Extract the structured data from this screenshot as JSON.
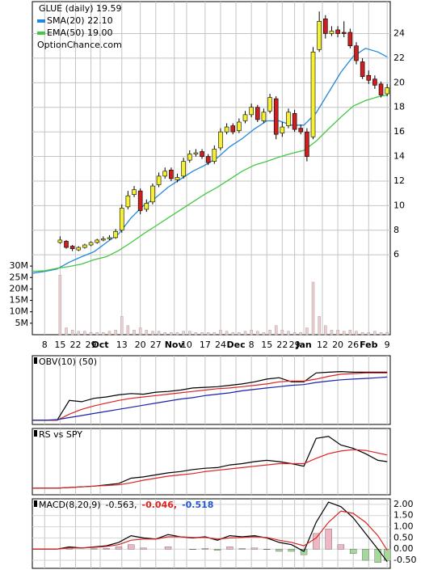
{
  "chart_data": [
    {
      "type": "candlestick",
      "title": "GLUE (daily) 19.59",
      "annotation": "OptionChance.com",
      "x": [
        9,
        11,
        13,
        15,
        17,
        19,
        21,
        23,
        25,
        27,
        29,
        31,
        33,
        35,
        37,
        39,
        41,
        43,
        45,
        47,
        49,
        51,
        53,
        55,
        57,
        59,
        61,
        63,
        65,
        67,
        69,
        71,
        73,
        75,
        77,
        79,
        81,
        83,
        85,
        87,
        89,
        91,
        93,
        95,
        97,
        99,
        101,
        103,
        105,
        107,
        109,
        111,
        113,
        115
      ],
      "open": [
        7.0,
        7.1,
        6.7,
        6.4,
        6.6,
        6.8,
        7.0,
        7.2,
        7.3,
        7.4,
        8.0,
        9.9,
        10.9,
        11.2,
        9.7,
        10.3,
        11.7,
        12.4,
        12.9,
        12.1,
        12.4,
        13.7,
        14.2,
        14.4,
        14.0,
        13.6,
        14.7,
        16.0,
        16.5,
        16.1,
        16.9,
        17.4,
        18.0,
        16.9,
        17.7,
        18.7,
        15.9,
        16.5,
        17.5,
        16.3,
        16.0,
        15.6,
        22.7,
        25.2,
        24.0,
        24.3,
        24.1,
        24.1,
        23.0,
        21.7,
        20.6,
        20.3,
        19.9,
        19.1
      ],
      "high": [
        7.5,
        7.2,
        6.8,
        6.7,
        6.9,
        7.1,
        7.3,
        7.5,
        7.6,
        8.1,
        10.1,
        11.2,
        11.6,
        11.4,
        10.5,
        11.8,
        12.7,
        13.1,
        13.1,
        12.6,
        13.9,
        14.5,
        14.6,
        14.6,
        14.2,
        14.9,
        16.3,
        16.7,
        16.7,
        17.1,
        17.7,
        18.3,
        18.2,
        17.9,
        19.1,
        18.9,
        16.8,
        17.9,
        17.8,
        16.6,
        16.3,
        22.9,
        25.8,
        25.5,
        24.6,
        24.6,
        25.0,
        24.4,
        23.3,
        22.0,
        21.0,
        20.6,
        20.1,
        19.9
      ],
      "low": [
        6.9,
        6.5,
        6.3,
        6.3,
        6.5,
        6.7,
        6.9,
        7.1,
        7.2,
        7.3,
        7.8,
        9.7,
        10.7,
        9.3,
        9.5,
        10.1,
        11.5,
        12.2,
        12.0,
        11.9,
        12.2,
        13.5,
        14.0,
        13.8,
        13.3,
        13.4,
        14.5,
        15.8,
        15.8,
        15.9,
        16.7,
        17.2,
        16.8,
        16.7,
        17.5,
        15.4,
        15.6,
        16.3,
        16.0,
        15.8,
        13.6,
        15.4,
        22.5,
        23.6,
        23.8,
        23.7,
        23.7,
        22.8,
        21.5,
        20.3,
        19.9,
        19.5,
        18.8,
        18.9
      ],
      "close": [
        7.2,
        6.6,
        6.5,
        6.6,
        6.8,
        7.0,
        7.2,
        7.3,
        7.4,
        7.9,
        9.8,
        10.8,
        11.3,
        9.6,
        10.2,
        11.6,
        12.4,
        12.8,
        12.2,
        12.3,
        13.6,
        14.2,
        14.3,
        14.0,
        13.5,
        14.6,
        16.0,
        16.4,
        16.0,
        16.8,
        17.4,
        18.0,
        17.0,
        17.6,
        18.8,
        15.8,
        16.4,
        17.6,
        16.2,
        16.0,
        14.0,
        22.5,
        25.0,
        24.0,
        24.2,
        24.0,
        24.0,
        23.0,
        21.8,
        20.5,
        20.2,
        19.8,
        19.0,
        19.59
      ],
      "up_color": "#f5f032",
      "down_color": "#cc1f1f",
      "volume": {
        "axis": "y2",
        "color": "#e9cfcf",
        "values": [
          26,
          3,
          2,
          1.5,
          1.5,
          1,
          1,
          1,
          1.5,
          2,
          8,
          4,
          2,
          3,
          2,
          1.5,
          1.5,
          1,
          1,
          1,
          1.5,
          1.5,
          1,
          1,
          1,
          1,
          2,
          1.5,
          1,
          1,
          1.5,
          2,
          1.5,
          1,
          2,
          4,
          2,
          1.5,
          1,
          1,
          3,
          23,
          8,
          4,
          2,
          2,
          1.5,
          2,
          1.5,
          1,
          1,
          1.5,
          1,
          1
        ]
      },
      "series": [
        {
          "name": "SMA(20) 22.10",
          "color": "#2288dd",
          "x": [
            0,
            4,
            8,
            12,
            16,
            20,
            24,
            28,
            32,
            36,
            40,
            44,
            48,
            52,
            56,
            60,
            64,
            68,
            72,
            76,
            80,
            84,
            88,
            92,
            96,
            100,
            104,
            108,
            112,
            115
          ],
          "values": [
            4.5,
            4.65,
            4.85,
            5.4,
            5.85,
            6.25,
            7.0,
            7.7,
            9.0,
            10.0,
            10.65,
            11.5,
            12.15,
            12.8,
            13.3,
            13.9,
            14.8,
            15.45,
            16.25,
            16.9,
            16.9,
            16.55,
            16.55,
            17.55,
            19.2,
            20.85,
            22.15,
            22.8,
            22.5,
            22.1
          ]
        },
        {
          "name": "EMA(50) 19.00",
          "color": "#44c844",
          "x": [
            0,
            4,
            8,
            12,
            16,
            20,
            24,
            28,
            32,
            36,
            40,
            44,
            48,
            52,
            56,
            60,
            64,
            68,
            72,
            76,
            80,
            84,
            88,
            92,
            96,
            100,
            104,
            108,
            112,
            115
          ],
          "values": [
            4.65,
            4.7,
            4.9,
            5.05,
            5.25,
            5.6,
            5.85,
            6.35,
            7.0,
            7.7,
            8.35,
            9.0,
            9.65,
            10.3,
            10.95,
            11.5,
            12.15,
            12.8,
            13.3,
            13.6,
            13.95,
            14.25,
            14.5,
            15.25,
            16.25,
            17.2,
            18.1,
            18.55,
            18.85,
            19.0
          ]
        }
      ],
      "xlim": [
        0,
        116
      ],
      "xticks": [
        {
          "value": 4,
          "label": "8"
        },
        {
          "value": 9,
          "label": "15"
        },
        {
          "value": 14,
          "label": "22"
        },
        {
          "value": 19,
          "label": "29"
        },
        {
          "value": 22,
          "label": "Oct"
        },
        {
          "value": 29,
          "label": "13"
        },
        {
          "value": 35,
          "label": "20"
        },
        {
          "value": 40,
          "label": "27"
        },
        {
          "value": 46,
          "label": "Nov"
        },
        {
          "value": 50,
          "label": "10"
        },
        {
          "value": 56,
          "label": "17"
        },
        {
          "value": 61,
          "label": "24"
        },
        {
          "value": 66,
          "label": "Dec"
        },
        {
          "value": 71,
          "label": "8"
        },
        {
          "value": 76,
          "label": "15"
        },
        {
          "value": 81,
          "label": "22"
        },
        {
          "value": 85,
          "label": "29"
        },
        {
          "value": 88,
          "label": "Jan"
        },
        {
          "value": 94,
          "label": "12"
        },
        {
          "value": 99,
          "label": "20"
        },
        {
          "value": 104,
          "label": "26"
        },
        {
          "value": 109,
          "label": "Feb"
        },
        {
          "value": 115,
          "label": "9"
        }
      ],
      "ylim": [
        -0.5,
        26.6
      ],
      "yticks": [
        6,
        8,
        10,
        12,
        14,
        16,
        18,
        20,
        22,
        24
      ],
      "y2lim": [
        0,
        145.6
      ],
      "y2ticks": [
        {
          "value": 5,
          "label": "5M"
        },
        {
          "value": 10,
          "label": "10M"
        },
        {
          "value": 15,
          "label": "15M"
        },
        {
          "value": 20,
          "label": "20M"
        },
        {
          "value": 25,
          "label": "25M"
        },
        {
          "value": 30,
          "label": "30M"
        }
      ],
      "grid": true
    },
    {
      "type": "line",
      "title": "OBV(10) (50)",
      "x": [
        0,
        4,
        8,
        12,
        16,
        20,
        24,
        28,
        32,
        36,
        40,
        44,
        48,
        52,
        56,
        60,
        64,
        68,
        72,
        76,
        80,
        84,
        88,
        92,
        96,
        100,
        104,
        108,
        112,
        115
      ],
      "ylim": [
        0,
        100
      ],
      "series": [
        {
          "color": "#000000",
          "values": [
            6,
            6,
            6,
            35,
            33,
            38,
            40,
            43,
            45,
            44,
            47,
            48,
            50,
            53,
            54,
            55,
            57,
            59,
            62,
            66,
            68,
            62,
            62,
            75,
            76,
            77,
            76,
            76,
            76,
            76
          ]
        },
        {
          "color": "#dd2222",
          "values": [
            6,
            6,
            6,
            15,
            22,
            27,
            31,
            35,
            38,
            40,
            42,
            44,
            46,
            48,
            50,
            52,
            53,
            55,
            57,
            59,
            62,
            63,
            63,
            66,
            70,
            73,
            74,
            75,
            75,
            75
          ]
        },
        {
          "color": "#1a22aa",
          "values": [
            6,
            6,
            7,
            10,
            13,
            16,
            19,
            22,
            25,
            28,
            31,
            34,
            37,
            39,
            42,
            44,
            46,
            49,
            51,
            53,
            55,
            57,
            58,
            61,
            63,
            65,
            66,
            67,
            68,
            69
          ]
        }
      ]
    },
    {
      "type": "line",
      "title": "RS vs SPY",
      "x": [
        0,
        4,
        8,
        12,
        16,
        20,
        24,
        28,
        32,
        36,
        40,
        44,
        48,
        52,
        56,
        60,
        64,
        68,
        72,
        76,
        80,
        84,
        88,
        92,
        96,
        100,
        104,
        108,
        112,
        115
      ],
      "ylim": [
        0,
        100
      ],
      "series": [
        {
          "color": "#000000",
          "values": [
            10,
            10,
            10,
            11,
            12,
            13,
            15,
            17,
            25,
            27,
            30,
            33,
            35,
            38,
            40,
            41,
            45,
            47,
            50,
            52,
            50,
            47,
            43,
            85,
            88,
            75,
            70,
            62,
            52,
            50
          ]
        },
        {
          "color": "#dd2222",
          "values": [
            10,
            10,
            10,
            11,
            12,
            13,
            14,
            15,
            18,
            22,
            25,
            28,
            30,
            32,
            35,
            37,
            39,
            41,
            43,
            45,
            47,
            47,
            47,
            55,
            62,
            66,
            68,
            67,
            63,
            60
          ]
        }
      ]
    },
    {
      "type": "line",
      "title": "MACD(8,20,9)",
      "x": [
        0,
        4,
        8,
        12,
        16,
        20,
        24,
        28,
        32,
        36,
        40,
        44,
        48,
        52,
        56,
        60,
        64,
        68,
        72,
        76,
        80,
        84,
        88,
        92,
        96,
        100,
        104,
        108,
        112,
        115
      ],
      "ylim": [
        -0.86,
        2.25
      ],
      "yticks": [
        {
          "value": -0.5,
          "label": "-0.50"
        },
        {
          "value": 0,
          "label": "0.00"
        },
        {
          "value": 0.5,
          "label": "0.50"
        },
        {
          "value": 1,
          "label": "1.00"
        },
        {
          "value": 1.5,
          "label": "1.50"
        },
        {
          "value": 2,
          "label": "2.00"
        }
      ],
      "series": [
        {
          "name": "-0.563,",
          "color": "#000000",
          "values": [
            0,
            0,
            0,
            0.1,
            0.05,
            0.1,
            0.15,
            0.3,
            0.6,
            0.5,
            0.45,
            0.65,
            0.55,
            0.5,
            0.55,
            0.4,
            0.6,
            0.55,
            0.6,
            0.5,
            0.3,
            0.2,
            -0.1,
            1.2,
            2.1,
            1.9,
            1.4,
            0.7,
            0,
            -0.56
          ]
        },
        {
          "name": "-0.046,",
          "color": "#dd2222",
          "values": [
            0,
            0,
            0,
            0.05,
            0.05,
            0.08,
            0.12,
            0.2,
            0.4,
            0.45,
            0.45,
            0.55,
            0.55,
            0.52,
            0.52,
            0.45,
            0.5,
            0.52,
            0.55,
            0.52,
            0.4,
            0.3,
            0.15,
            0.5,
            1.2,
            1.7,
            1.6,
            1.2,
            0.6,
            -0.05
          ]
        }
      ],
      "histogram": {
        "name": "-0.518",
        "color": "#2255cc",
        "pos_color": "#f2b5c4",
        "neg_color": "#a6d89c",
        "values": [
          0,
          0,
          0,
          0.05,
          0,
          0.02,
          0.03,
          0.1,
          0.2,
          0.05,
          0,
          0.1,
          0,
          -0.02,
          0.03,
          -0.05,
          0.1,
          0.03,
          0.05,
          -0.02,
          -0.1,
          -0.1,
          -0.25,
          0.7,
          0.9,
          0.2,
          -0.2,
          -0.5,
          -0.6,
          -0.51
        ]
      },
      "grid": true
    }
  ]
}
